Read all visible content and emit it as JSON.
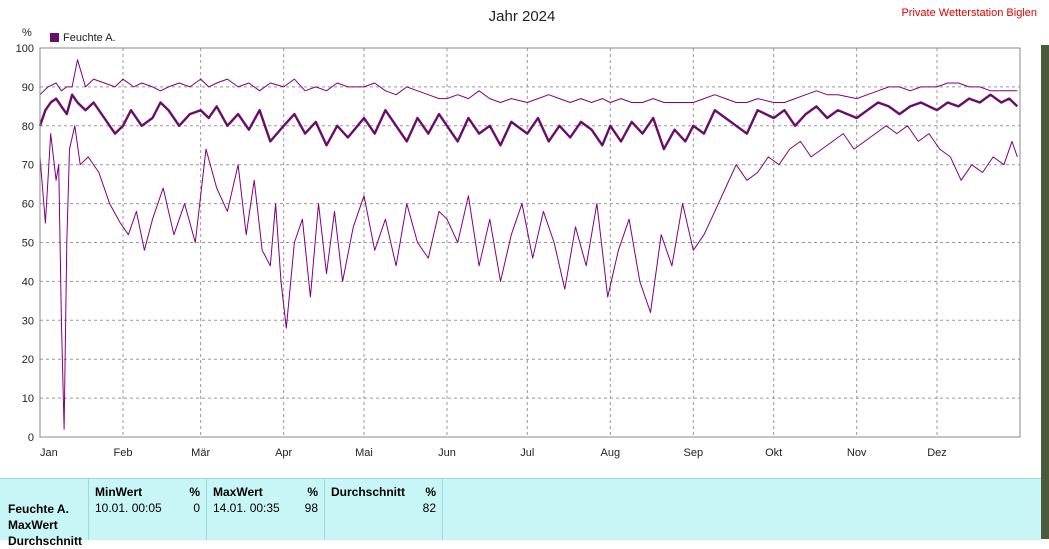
{
  "chart_data": {
    "type": "line",
    "title": "Jahr 2024",
    "station": "Private Wetterstation Biglen",
    "ylabel": "%",
    "ylim": [
      0,
      100
    ],
    "yticks": [
      0,
      10,
      20,
      30,
      40,
      50,
      60,
      70,
      80,
      90,
      100
    ],
    "xlim": [
      0,
      366
    ],
    "xticks": [
      {
        "label": "Jan",
        "day": 0
      },
      {
        "label": "Feb",
        "day": 31
      },
      {
        "label": "Mär",
        "day": 60
      },
      {
        "label": "Apr",
        "day": 91
      },
      {
        "label": "Mai",
        "day": 121
      },
      {
        "label": "Jun",
        "day": 152
      },
      {
        "label": "Jul",
        "day": 182
      },
      {
        "label": "Aug",
        "day": 213
      },
      {
        "label": "Sep",
        "day": 244
      },
      {
        "label": "Okt",
        "day": 274
      },
      {
        "label": "Nov",
        "day": 305
      },
      {
        "label": "Dez",
        "day": 335
      }
    ],
    "legend": [
      {
        "name": "Feuchte A.",
        "color": "#6a0d6a"
      }
    ],
    "grid": true,
    "series": [
      {
        "role": "max",
        "color": "#800080",
        "days": [
          0,
          3,
          6,
          8,
          10,
          12,
          14,
          17,
          20,
          24,
          28,
          31,
          35,
          38,
          42,
          45,
          48,
          52,
          56,
          60,
          63,
          66,
          70,
          74,
          78,
          82,
          86,
          91,
          95,
          99,
          103,
          107,
          111,
          115,
          121,
          125,
          129,
          133,
          137,
          141,
          145,
          149,
          152,
          156,
          160,
          164,
          168,
          172,
          176,
          182,
          186,
          190,
          194,
          198,
          202,
          206,
          210,
          213,
          217,
          221,
          225,
          229,
          233,
          237,
          241,
          244,
          248,
          252,
          256,
          260,
          264,
          268,
          274,
          278,
          282,
          286,
          290,
          294,
          298,
          305,
          309,
          313,
          317,
          321,
          325,
          329,
          335,
          339,
          343,
          347,
          351,
          355,
          359,
          362,
          365
        ],
        "values": [
          88,
          90,
          91,
          89,
          90,
          90,
          97,
          90,
          92,
          91,
          90,
          92,
          90,
          91,
          90,
          89,
          90,
          91,
          90,
          92,
          90,
          91,
          92,
          90,
          91,
          89,
          91,
          90,
          92,
          89,
          90,
          89,
          91,
          90,
          90,
          91,
          89,
          88,
          90,
          89,
          88,
          87,
          87,
          88,
          87,
          89,
          87,
          86,
          87,
          86,
          87,
          88,
          87,
          86,
          87,
          86,
          87,
          86,
          87,
          86,
          86,
          87,
          86,
          86,
          86,
          86,
          87,
          88,
          87,
          86,
          86,
          87,
          86,
          86,
          87,
          88,
          89,
          88,
          88,
          87,
          88,
          89,
          90,
          90,
          89,
          90,
          90,
          91,
          91,
          90,
          90,
          89,
          89,
          89,
          89
        ]
      },
      {
        "role": "mean",
        "color": "#6a0d6a",
        "days": [
          0,
          2,
          4,
          6,
          8,
          10,
          12,
          14,
          17,
          20,
          24,
          28,
          31,
          34,
          38,
          42,
          45,
          48,
          52,
          56,
          60,
          63,
          66,
          70,
          74,
          78,
          82,
          86,
          91,
          95,
          99,
          103,
          107,
          111,
          115,
          121,
          125,
          129,
          133,
          137,
          141,
          145,
          149,
          152,
          156,
          160,
          164,
          168,
          172,
          176,
          182,
          186,
          190,
          194,
          198,
          202,
          206,
          210,
          213,
          217,
          221,
          225,
          229,
          233,
          237,
          241,
          244,
          248,
          252,
          256,
          260,
          264,
          268,
          274,
          278,
          282,
          286,
          290,
          294,
          298,
          305,
          309,
          313,
          317,
          321,
          325,
          329,
          335,
          339,
          343,
          347,
          351,
          355,
          359,
          362,
          365
        ],
        "values": [
          80,
          84,
          86,
          87,
          85,
          83,
          88,
          86,
          84,
          86,
          82,
          78,
          80,
          84,
          80,
          82,
          86,
          84,
          80,
          83,
          84,
          82,
          85,
          80,
          83,
          79,
          84,
          76,
          80,
          83,
          78,
          81,
          75,
          80,
          77,
          82,
          78,
          84,
          80,
          76,
          82,
          78,
          83,
          80,
          76,
          82,
          78,
          80,
          75,
          81,
          78,
          82,
          76,
          80,
          77,
          81,
          79,
          75,
          80,
          76,
          81,
          78,
          82,
          74,
          79,
          76,
          80,
          78,
          84,
          82,
          80,
          78,
          84,
          82,
          84,
          80,
          83,
          85,
          82,
          84,
          82,
          84,
          86,
          85,
          83,
          85,
          86,
          84,
          86,
          85,
          87,
          86,
          88,
          86,
          87,
          85
        ]
      },
      {
        "role": "min",
        "color": "#800080",
        "days": [
          0,
          2,
          4,
          6,
          7,
          8,
          9,
          10,
          11,
          13,
          15,
          18,
          22,
          26,
          30,
          33,
          36,
          39,
          42,
          46,
          50,
          54,
          58,
          62,
          66,
          70,
          74,
          77,
          80,
          83,
          86,
          88,
          90,
          92,
          95,
          98,
          101,
          104,
          107,
          110,
          113,
          117,
          121,
          125,
          129,
          133,
          137,
          141,
          145,
          149,
          152,
          156,
          160,
          164,
          168,
          172,
          176,
          180,
          184,
          188,
          192,
          196,
          200,
          204,
          208,
          212,
          216,
          220,
          224,
          228,
          232,
          236,
          240,
          244,
          248,
          252,
          256,
          260,
          264,
          268,
          272,
          276,
          280,
          284,
          288,
          292,
          296,
          300,
          304,
          308,
          312,
          316,
          320,
          324,
          328,
          332,
          336,
          340,
          344,
          348,
          352,
          356,
          360,
          363,
          365
        ],
        "values": [
          72,
          55,
          78,
          66,
          70,
          30,
          2,
          50,
          74,
          80,
          70,
          72,
          68,
          60,
          55,
          52,
          58,
          48,
          56,
          64,
          52,
          60,
          50,
          74,
          64,
          58,
          70,
          52,
          66,
          48,
          44,
          60,
          40,
          28,
          50,
          56,
          36,
          60,
          42,
          58,
          40,
          54,
          62,
          48,
          56,
          44,
          60,
          50,
          46,
          58,
          56,
          50,
          62,
          44,
          56,
          40,
          52,
          60,
          46,
          58,
          50,
          38,
          54,
          44,
          60,
          36,
          48,
          56,
          40,
          32,
          52,
          44,
          60,
          48,
          52,
          58,
          64,
          70,
          66,
          68,
          72,
          70,
          74,
          76,
          72,
          74,
          76,
          78,
          74,
          76,
          78,
          80,
          78,
          80,
          76,
          78,
          74,
          72,
          66,
          70,
          68,
          72,
          70,
          76,
          72
        ]
      }
    ]
  },
  "stats": {
    "row_labels": [
      "Feuchte A.",
      "MaxWert",
      "Durchschnitt"
    ],
    "columns": [
      {
        "header": "MinWert",
        "unit": "%",
        "time": "10.01.  00:05",
        "value": "0"
      },
      {
        "header": "MaxWert",
        "unit": "%",
        "time": "14.01.  00:35",
        "value": "98"
      },
      {
        "header": "Durchschnitt",
        "unit": "%",
        "time": "",
        "value": "82"
      }
    ]
  }
}
